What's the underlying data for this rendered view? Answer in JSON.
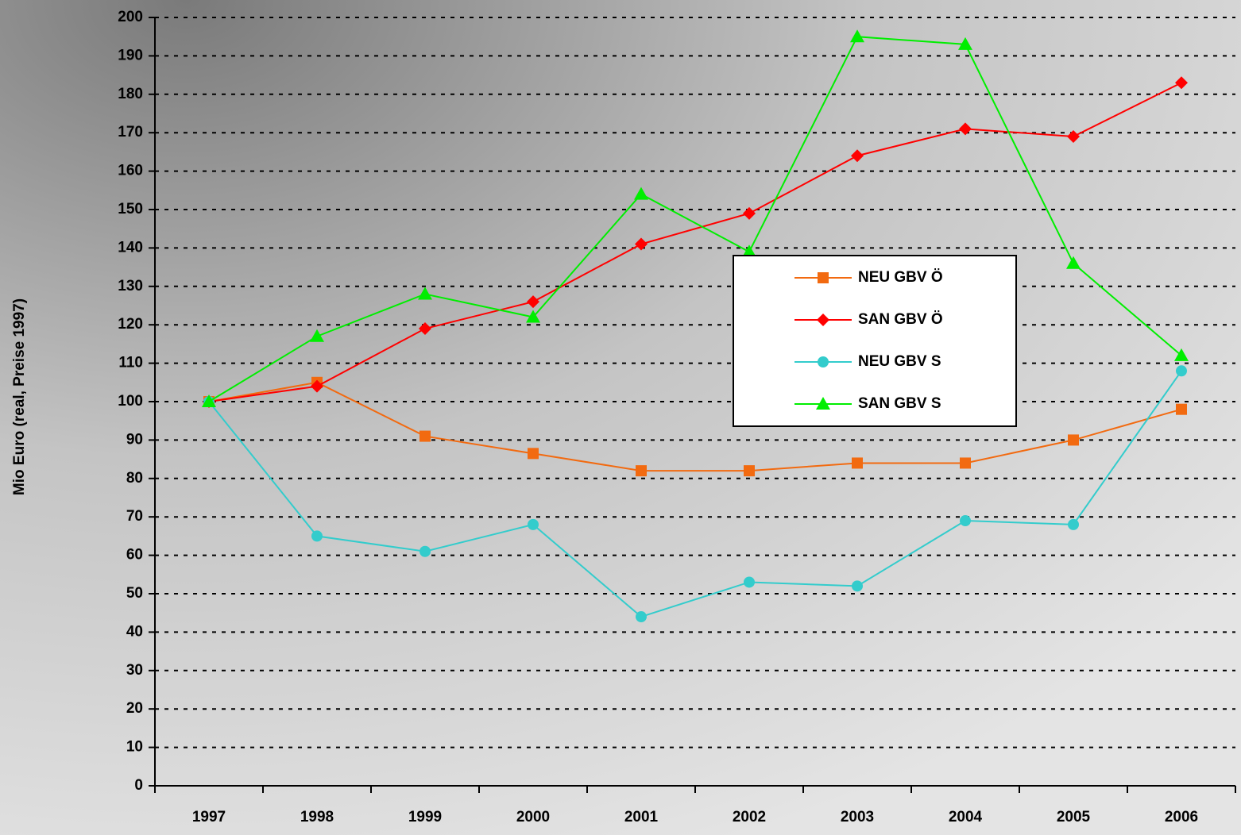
{
  "chart_data": {
    "type": "line",
    "y_label": "Mio Euro (real, Preise 1997)",
    "categories": [
      "1997",
      "1998",
      "1999",
      "2000",
      "2001",
      "2002",
      "2003",
      "2004",
      "2005",
      "2006"
    ],
    "series": [
      {
        "name": "NEU GBV Ö",
        "color": "#f26a10",
        "marker": "square",
        "values": [
          100,
          105,
          91,
          86.5,
          82,
          82,
          84,
          84,
          90,
          98
        ]
      },
      {
        "name": "SAN GBV Ö",
        "color": "#ff0000",
        "marker": "diamond",
        "values": [
          100,
          104,
          119,
          126,
          141,
          149,
          164,
          171,
          169,
          183
        ]
      },
      {
        "name": "NEU GBV S",
        "color": "#33cccc",
        "marker": "circle",
        "values": [
          100,
          65,
          61,
          68,
          44,
          53,
          52,
          69,
          68,
          108
        ]
      },
      {
        "name": "SAN GBV S",
        "color": "#00ee00",
        "marker": "triangle",
        "values": [
          100,
          117,
          128,
          122,
          154,
          139,
          195,
          193,
          136,
          112
        ]
      }
    ],
    "ylim": [
      0,
      200
    ],
    "yticks": [
      0,
      10,
      20,
      30,
      40,
      50,
      60,
      70,
      80,
      90,
      100,
      110,
      120,
      130,
      140,
      150,
      160,
      170,
      180,
      190,
      200
    ],
    "grid": true
  }
}
